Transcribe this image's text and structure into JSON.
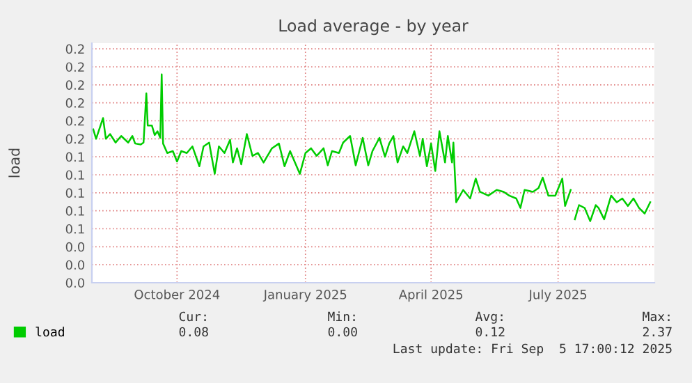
{
  "chart_data": {
    "type": "line",
    "title": "Load average - by year",
    "ylabel": "load",
    "x": [
      "2024-08-02",
      "2024-08-04",
      "2024-08-09",
      "2024-08-11",
      "2024-08-14",
      "2024-08-18",
      "2024-08-22",
      "2024-08-27",
      "2024-08-30",
      "2024-09-01",
      "2024-09-05",
      "2024-09-07",
      "2024-09-09",
      "2024-09-10",
      "2024-09-13",
      "2024-09-15",
      "2024-09-17",
      "2024-09-19",
      "2024-09-20",
      "2024-09-21",
      "2024-09-24",
      "2024-09-28",
      "2024-10-01",
      "2024-10-04",
      "2024-10-08",
      "2024-10-12",
      "2024-10-17",
      "2024-10-20",
      "2024-10-24",
      "2024-10-28",
      "2024-10-31",
      "2024-11-04",
      "2024-11-08",
      "2024-11-10",
      "2024-11-13",
      "2024-11-16",
      "2024-11-20",
      "2024-11-24",
      "2024-11-28",
      "2024-12-02",
      "2024-12-08",
      "2024-12-13",
      "2024-12-17",
      "2024-12-21",
      "2024-12-28",
      "2025-01-01",
      "2025-01-05",
      "2025-01-09",
      "2025-01-14",
      "2025-01-17",
      "2025-01-20",
      "2025-01-25",
      "2025-01-28",
      "2025-02-02",
      "2025-02-06",
      "2025-02-11",
      "2025-02-15",
      "2025-02-18",
      "2025-02-23",
      "2025-02-27",
      "2025-03-02",
      "2025-03-05",
      "2025-03-08",
      "2025-03-12",
      "2025-03-15",
      "2025-03-20",
      "2025-03-24",
      "2025-03-26",
      "2025-03-29",
      "2025-04-01",
      "2025-04-04",
      "2025-04-07",
      "2025-04-11",
      "2025-04-13",
      "2025-04-16",
      "2025-04-17",
      "2025-04-19",
      "2025-04-24",
      "2025-04-29",
      "2025-05-03",
      "2025-05-06",
      "2025-05-12",
      "2025-05-18",
      "2025-05-23",
      "2025-05-27",
      "2025-06-01",
      "2025-06-04",
      "2025-06-07",
      "2025-06-13",
      "2025-06-17",
      "2025-06-20",
      "2025-06-24",
      "2025-06-29",
      "2025-07-04",
      "2025-07-06",
      "2025-07-10",
      "2025-07-12",
      "2025-07-13",
      "2025-07-16",
      "2025-07-20",
      "2025-07-24",
      "2025-07-28",
      "2025-07-30",
      "2025-08-03",
      "2025-08-08",
      "2025-08-12",
      "2025-08-16",
      "2025-08-20",
      "2025-08-24",
      "2025-08-28",
      "2025-09-01",
      "2025-09-05"
    ],
    "series": [
      {
        "name": "load",
        "color": "#00cc00",
        "values": [
          0.162,
          0.152,
          0.174,
          0.152,
          0.157,
          0.148,
          0.155,
          0.148,
          0.155,
          0.147,
          0.146,
          0.148,
          0.2,
          0.166,
          0.166,
          0.156,
          0.16,
          0.153,
          0.22,
          0.147,
          0.137,
          0.139,
          0.128,
          0.139,
          0.137,
          0.144,
          0.123,
          0.144,
          0.148,
          0.115,
          0.144,
          0.137,
          0.151,
          0.127,
          0.142,
          0.125,
          0.157,
          0.134,
          0.137,
          0.127,
          0.142,
          0.147,
          0.123,
          0.139,
          0.115,
          0.137,
          0.142,
          0.134,
          0.142,
          0.124,
          0.139,
          0.137,
          0.148,
          0.155,
          0.124,
          0.153,
          0.124,
          0.139,
          0.153,
          0.133,
          0.147,
          0.155,
          0.127,
          0.144,
          0.137,
          0.16,
          0.134,
          0.152,
          0.123,
          0.147,
          0.118,
          0.16,
          0.127,
          0.155,
          0.127,
          0.148,
          0.085,
          0.098,
          0.089,
          0.11,
          0.096,
          0.092,
          0.098,
          0.096,
          0.092,
          0.089,
          0.079,
          0.098,
          0.096,
          0.1,
          0.111,
          0.092,
          0.092,
          0.11,
          0.081,
          0.098,
          null,
          0.067,
          0.082,
          0.079,
          0.065,
          0.082,
          0.079,
          0.067,
          0.092,
          0.085,
          0.089,
          0.081,
          0.089,
          0.079,
          0.073,
          0.085
        ]
      }
    ],
    "xlim": [
      "2024-08-01",
      "2025-09-08"
    ],
    "xticks": [
      {
        "value": "2024-10-01",
        "label": "October 2024"
      },
      {
        "value": "2025-01-01",
        "label": "January 2025"
      },
      {
        "value": "2025-04-01",
        "label": "April 2025"
      },
      {
        "value": "2025-07-01",
        "label": "July 2025"
      }
    ],
    "ylim": [
      0,
      0.253
    ],
    "yticks": [
      {
        "value": 0,
        "label": "0.0"
      },
      {
        "value": 0.019,
        "label": "0.0"
      },
      {
        "value": 0.038,
        "label": "0.0"
      },
      {
        "value": 0.057,
        "label": "0.1"
      },
      {
        "value": 0.076,
        "label": "0.1"
      },
      {
        "value": 0.095,
        "label": "0.1"
      },
      {
        "value": 0.114,
        "label": "0.1"
      },
      {
        "value": 0.133,
        "label": "0.1"
      },
      {
        "value": 0.152,
        "label": "0.2"
      },
      {
        "value": 0.171,
        "label": "0.2"
      },
      {
        "value": 0.19,
        "label": "0.2"
      },
      {
        "value": 0.209,
        "label": "0.2"
      },
      {
        "value": 0.228,
        "label": "0.2"
      },
      {
        "value": 0.247,
        "label": "0.2"
      }
    ],
    "grid": true,
    "legend": "bottom left",
    "annotations": [
      "Cur:",
      "Min:",
      "Avg:",
      "Max:",
      "0.08",
      "0.00",
      "0.12",
      "2.37",
      "Last update: Fri Sep  5 17:00:12 2025"
    ]
  }
}
